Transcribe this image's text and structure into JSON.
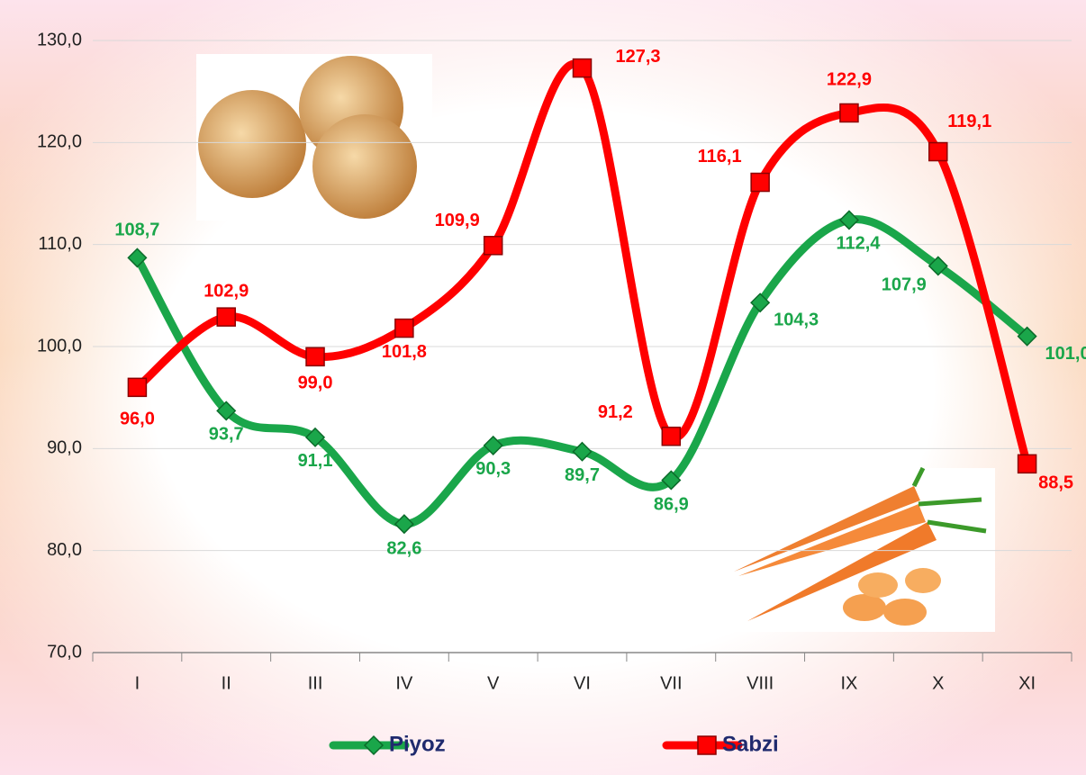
{
  "chart_data": {
    "type": "line",
    "categories": [
      "I",
      "II",
      "III",
      "IV",
      "V",
      "VI",
      "VII",
      "VIII",
      "IX",
      "X",
      "XI"
    ],
    "series": [
      {
        "name": "Piyoz",
        "color": "#1aa64a",
        "marker": "diamond",
        "values": [
          108.7,
          93.7,
          91.1,
          82.6,
          90.3,
          89.7,
          86.9,
          104.3,
          112.4,
          107.9,
          101.0
        ],
        "value_labels": [
          "108,7",
          "93,7",
          "91,1",
          "82,6",
          "90,3",
          "89,7",
          "86,9",
          "104,3",
          "112,4",
          "107,9",
          "101,0"
        ]
      },
      {
        "name": "Sabzi",
        "color": "#ff0000",
        "marker": "square",
        "values": [
          96.0,
          102.9,
          99.0,
          101.8,
          109.9,
          127.3,
          91.2,
          116.1,
          122.9,
          119.1,
          88.5
        ],
        "value_labels": [
          "96,0",
          "102,9",
          "99,0",
          "101,8",
          "109,9",
          "127,3",
          "91,2",
          "116,1",
          "122,9",
          "119,1",
          "88,5"
        ]
      }
    ],
    "ylim": [
      70,
      130
    ],
    "yticks": [
      {
        "value": 70,
        "label": "70,0"
      },
      {
        "value": 80,
        "label": "80,0"
      },
      {
        "value": 90,
        "label": "90,0"
      },
      {
        "value": 100,
        "label": "100,0"
      },
      {
        "value": 110,
        "label": "110,0"
      },
      {
        "value": 120,
        "label": "120,0"
      },
      {
        "value": 130,
        "label": "130,0"
      }
    ],
    "grid": true,
    "legend": "bottom",
    "smooth": true
  }
}
